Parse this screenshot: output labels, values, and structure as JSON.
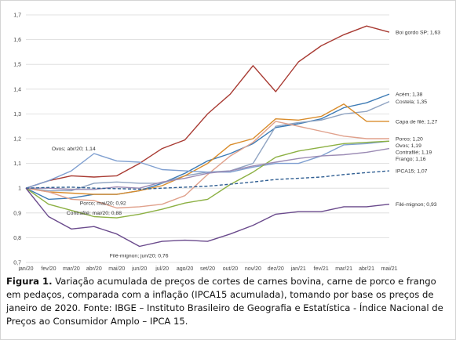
{
  "caption": {
    "label": "Figura 1.",
    "text": "Variação acumulada de preços de cortes de carnes bovina, carne de porco e frango em pedaços, comparada com a inflação (IPCA15 acumulada), tomando por base os preços de janeiro de 2020. Fonte: IBGE – Instituto Brasileiro de Geografia e Estatística - Índice Nacional de Preços ao Consumidor Amplo – IPCA 15."
  },
  "chart_data": {
    "type": "line",
    "title": "",
    "xlabel": "",
    "ylabel": "",
    "ylim": [
      0.7,
      1.7
    ],
    "yticks": [
      "0,7",
      "0,8",
      "0,9",
      "1",
      "1,1",
      "1,2",
      "1,3",
      "1,4",
      "1,5",
      "1,6",
      "1,7"
    ],
    "grid": true,
    "categories": [
      "jan/20",
      "fev/20",
      "mar/20",
      "abr/20",
      "mai/20",
      "jun/20",
      "jul/20",
      "ago/20",
      "set/20",
      "out/20",
      "nov/20",
      "dez/20",
      "jan/21",
      "fev/21",
      "mar/21",
      "abr/21",
      "mai/21"
    ],
    "series": [
      {
        "name": "Boi gordo SP",
        "end_label": "Boi gordo SP; 1,63",
        "color": "#a83a32",
        "dash": false,
        "values": [
          1.0,
          1.03,
          1.05,
          1.045,
          1.05,
          1.1,
          1.16,
          1.195,
          1.3,
          1.38,
          1.495,
          1.39,
          1.51,
          1.575,
          1.62,
          1.655,
          1.63
        ]
      },
      {
        "name": "Acém",
        "end_label": "Acém; 1,38",
        "color": "#3d7bb5",
        "dash": false,
        "values": [
          1.0,
          0.955,
          0.96,
          0.975,
          0.975,
          0.99,
          1.02,
          1.06,
          1.11,
          1.14,
          1.18,
          1.245,
          1.26,
          1.28,
          1.325,
          1.345,
          1.38
        ]
      },
      {
        "name": "Costela",
        "end_label": "Costela; 1,35",
        "color": "#90a4c2",
        "dash": false,
        "values": [
          1.0,
          0.99,
          0.99,
          1.02,
          1.025,
          1.02,
          1.02,
          1.05,
          1.065,
          1.07,
          1.1,
          1.25,
          1.265,
          1.275,
          1.3,
          1.31,
          1.35
        ]
      },
      {
        "name": "Capa de filé",
        "end_label": "Capa de filé; 1,27",
        "color": "#d98c2b",
        "dash": false,
        "values": [
          1.0,
          0.985,
          0.98,
          0.975,
          0.975,
          0.99,
          1.01,
          1.05,
          1.1,
          1.175,
          1.2,
          1.28,
          1.275,
          1.29,
          1.34,
          1.27,
          1.27
        ]
      },
      {
        "name": "Porco",
        "end_label": "Porco; 1,20",
        "color": "#e0a18c",
        "dash": false,
        "values": [
          1.0,
          0.985,
          0.955,
          0.95,
          0.92,
          0.925,
          0.935,
          0.97,
          1.055,
          1.13,
          1.185,
          1.27,
          1.25,
          1.23,
          1.21,
          1.2,
          1.2
        ]
      },
      {
        "name": "Ovos",
        "end_label": "Ovos; 1,19",
        "color": "#7f9fd0",
        "dash": false,
        "values": [
          1.0,
          1.03,
          1.07,
          1.14,
          1.11,
          1.105,
          1.075,
          1.07,
          1.065,
          1.065,
          1.085,
          1.1,
          1.1,
          1.13,
          1.175,
          1.18,
          1.19
        ]
      },
      {
        "name": "Contrafilé",
        "end_label": "Contrafilé; 1,19",
        "color": "#8cb043",
        "dash": false,
        "values": [
          1.0,
          0.935,
          0.91,
          0.885,
          0.88,
          0.895,
          0.915,
          0.94,
          0.955,
          1.015,
          1.065,
          1.125,
          1.15,
          1.165,
          1.18,
          1.185,
          1.19
        ]
      },
      {
        "name": "Frango",
        "end_label": "Frango; 1,16",
        "color": "#9b8bb4",
        "dash": false,
        "values": [
          1.0,
          1.0,
          0.995,
          0.995,
          1.005,
          1.0,
          1.025,
          1.04,
          1.06,
          1.07,
          1.09,
          1.105,
          1.12,
          1.13,
          1.135,
          1.145,
          1.16
        ]
      },
      {
        "name": "IPCA15",
        "end_label": "IPCA15; 1,07",
        "color": "#2f5e92",
        "dash": true,
        "values": [
          1.0,
          1.003,
          1.004,
          1.0,
          0.998,
          0.996,
          1.0,
          1.004,
          1.008,
          1.016,
          1.025,
          1.035,
          1.04,
          1.045,
          1.055,
          1.063,
          1.07
        ]
      },
      {
        "name": "Filé-mignon",
        "end_label": "Filé-mignon; 0,93",
        "color": "#6a4a8c",
        "dash": false,
        "values": [
          1.0,
          0.885,
          0.835,
          0.845,
          0.815,
          0.765,
          0.785,
          0.79,
          0.785,
          0.815,
          0.85,
          0.895,
          0.905,
          0.905,
          0.925,
          0.925,
          0.935
        ]
      }
    ],
    "annotations": [
      {
        "text": "Ovos; abr/20; 1,14",
        "series": "Ovos"
      },
      {
        "text": "Porco; mai/20; 0,92",
        "series": "Porco"
      },
      {
        "text": "Contrafilé; mai/20; 0,88",
        "series": "Contrafilé"
      },
      {
        "text": "Filé-mignon; jun/20; 0,76",
        "series": "Filé-mignon"
      }
    ]
  }
}
